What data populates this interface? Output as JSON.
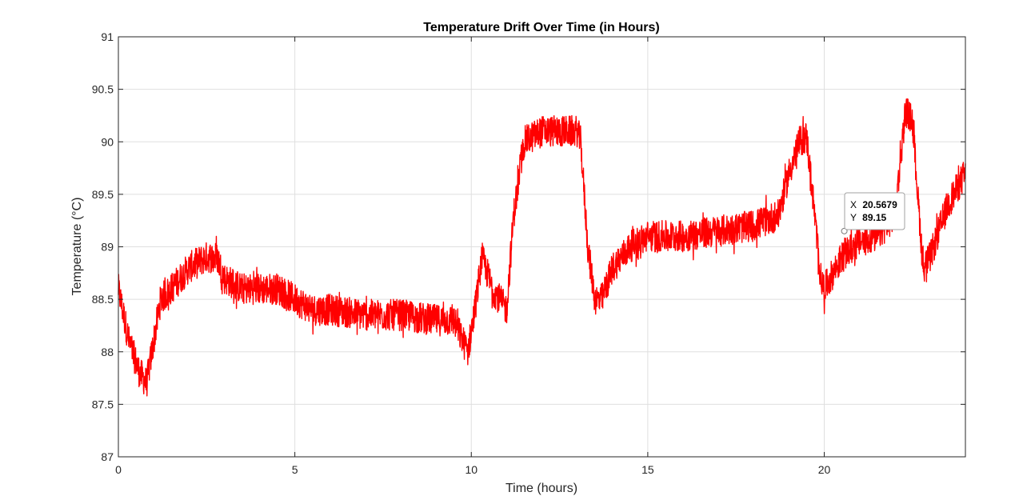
{
  "chart_data": {
    "type": "line",
    "title": "Temperature Drift Over Time (in Hours)",
    "xlabel": "Time (hours)",
    "ylabel": "Temperature (°C)",
    "xlim": [
      0,
      24
    ],
    "ylim": [
      87,
      91
    ],
    "xticks": [
      0,
      5,
      10,
      15,
      20
    ],
    "xtick_labels": [
      "0",
      "5",
      "10",
      "15",
      "20"
    ],
    "yticks": [
      87,
      87.5,
      88,
      88.5,
      89,
      89.5,
      90,
      90.5,
      91
    ],
    "ytick_labels": [
      "87",
      "87.5",
      "88",
      "88.5",
      "89",
      "89.5",
      "90",
      "90.5",
      "91"
    ],
    "grid": true,
    "series": [
      {
        "color": "#ff0000",
        "noise_amplitude": 0.3,
        "x": [
          0,
          0.3,
          0.6,
          0.8,
          1.0,
          1.2,
          1.5,
          2.0,
          2.5,
          2.8,
          3.0,
          3.5,
          4.0,
          4.5,
          5.0,
          5.5,
          6.0,
          7.0,
          8.0,
          9.0,
          9.5,
          9.9,
          10.1,
          10.3,
          10.6,
          11.0,
          11.2,
          11.5,
          12.0,
          12.5,
          13.0,
          13.1,
          13.3,
          13.5,
          13.7,
          14.0,
          14.5,
          15.0,
          16.0,
          17.0,
          18.0,
          18.7,
          19.0,
          19.3,
          19.5,
          19.7,
          19.9,
          20.0,
          20.5,
          21.0,
          21.5,
          22.0,
          22.3,
          22.5,
          22.8,
          23.0,
          23.5,
          24.0
        ],
        "y": [
          88.6,
          88.1,
          87.8,
          87.7,
          88.1,
          88.5,
          88.6,
          88.8,
          88.9,
          88.9,
          88.7,
          88.6,
          88.6,
          88.6,
          88.5,
          88.4,
          88.4,
          88.35,
          88.35,
          88.3,
          88.3,
          88.0,
          88.4,
          88.9,
          88.6,
          88.4,
          89.3,
          90.0,
          90.1,
          90.1,
          90.1,
          90.0,
          89.0,
          88.5,
          88.5,
          88.8,
          89.0,
          89.1,
          89.1,
          89.15,
          89.2,
          89.3,
          89.7,
          90.0,
          90.05,
          89.4,
          88.7,
          88.6,
          88.9,
          89.05,
          89.1,
          89.3,
          90.3,
          90.2,
          88.8,
          88.9,
          89.4,
          89.7
        ]
      }
    ],
    "datatip": {
      "x_prefix": "X",
      "x_value": "20.5679",
      "y_prefix": "Y",
      "y_value": "89.15",
      "x": 20.5679,
      "y": 89.15
    }
  }
}
